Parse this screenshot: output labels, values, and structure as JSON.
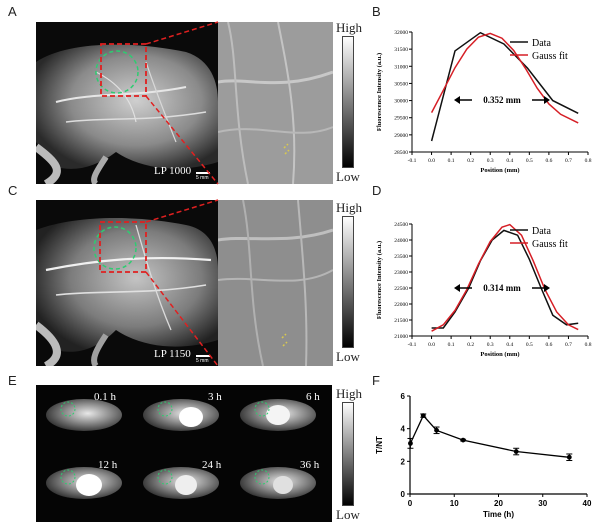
{
  "panels": {
    "a": {
      "letter": "A",
      "label": "LP 1000",
      "scale": "5 mm"
    },
    "b": {
      "letter": "B"
    },
    "c": {
      "letter": "C",
      "label": "LP 1150",
      "scale": "5 mm"
    },
    "d": {
      "letter": "D"
    },
    "e": {
      "letter": "E",
      "times": [
        "0.1 h",
        "3 h",
        "6 h",
        "12 h",
        "24 h",
        "36 h"
      ]
    },
    "f": {
      "letter": "F"
    }
  },
  "colorbar": {
    "high": "High",
    "low": "Low"
  },
  "colors": {
    "data": "#111111",
    "fit": "#d61f26",
    "roi": "#2ecc71",
    "zoom": "#e02020"
  },
  "chart_data": [
    {
      "id": "B",
      "type": "line",
      "ylabel": "Fluorescence Intensity (a.u.)",
      "xlabel": "Position (mm)",
      "xlim": [
        -0.1,
        0.8
      ],
      "ylim": [
        28500,
        32000
      ],
      "xticks": [
        "-0.1",
        "0.0",
        "0.1",
        "0.2",
        "0.3",
        "0.4",
        "0.5",
        "0.6",
        "0.7",
        "0.8"
      ],
      "yticks": [
        "28500",
        "29000",
        "29500",
        "30000",
        "30500",
        "31000",
        "31500",
        "32000"
      ],
      "annotation": "0.352 mm",
      "series": [
        {
          "name": "Data",
          "x": [
            0.0,
            0.12,
            0.25,
            0.37,
            0.49,
            0.62,
            0.75
          ],
          "y": [
            28820,
            31450,
            31980,
            31650,
            30950,
            30000,
            29630
          ]
        },
        {
          "name": "Gauss fit",
          "x": [
            0.0,
            0.06,
            0.12,
            0.18,
            0.24,
            0.3,
            0.36,
            0.42,
            0.48,
            0.54,
            0.6,
            0.66,
            0.75
          ],
          "y": [
            29650,
            30300,
            30960,
            31500,
            31850,
            31960,
            31820,
            31460,
            30940,
            30360,
            29900,
            29600,
            29350
          ]
        }
      ]
    },
    {
      "id": "D",
      "type": "line",
      "ylabel": "Fluorescence Intensity (a.u.)",
      "xlabel": "Position (mm)",
      "xlim": [
        -0.1,
        0.8
      ],
      "ylim": [
        21000,
        24500
      ],
      "xticks": [
        "-0.1",
        "0.0",
        "0.1",
        "0.2",
        "0.3",
        "0.4",
        "0.5",
        "0.6",
        "0.7",
        "0.8"
      ],
      "yticks": [
        "21000",
        "21500",
        "22000",
        "22500",
        "23000",
        "23500",
        "24000",
        "24500"
      ],
      "annotation": "0.314 mm",
      "series": [
        {
          "name": "Data",
          "x": [
            0.0,
            0.06,
            0.12,
            0.19,
            0.25,
            0.31,
            0.37,
            0.44,
            0.5,
            0.56,
            0.62,
            0.69,
            0.75
          ],
          "y": [
            21250,
            21250,
            21750,
            22500,
            23350,
            24000,
            24300,
            24150,
            23400,
            22500,
            21650,
            21350,
            21400
          ]
        },
        {
          "name": "Gauss fit",
          "x": [
            0.0,
            0.06,
            0.12,
            0.18,
            0.24,
            0.3,
            0.36,
            0.4,
            0.46,
            0.52,
            0.58,
            0.64,
            0.7,
            0.75
          ],
          "y": [
            21150,
            21350,
            21800,
            22450,
            23250,
            23950,
            24400,
            24480,
            24150,
            23350,
            22450,
            21750,
            21350,
            21200
          ]
        }
      ]
    },
    {
      "id": "F",
      "type": "line",
      "ylabel": "T/NT",
      "xlabel": "Time (h)",
      "xlim": [
        0,
        40
      ],
      "ylim": [
        0,
        6
      ],
      "xticks": [
        "0",
        "10",
        "20",
        "30",
        "40"
      ],
      "yticks": [
        "0",
        "2",
        "4",
        "6"
      ],
      "series": [
        {
          "x": [
            0.1,
            3,
            6,
            12,
            24,
            36
          ],
          "y": [
            3.1,
            4.8,
            3.9,
            3.3,
            2.6,
            2.25
          ],
          "err": [
            0.3,
            0.1,
            0.2,
            0.05,
            0.2,
            0.2
          ]
        }
      ]
    }
  ]
}
